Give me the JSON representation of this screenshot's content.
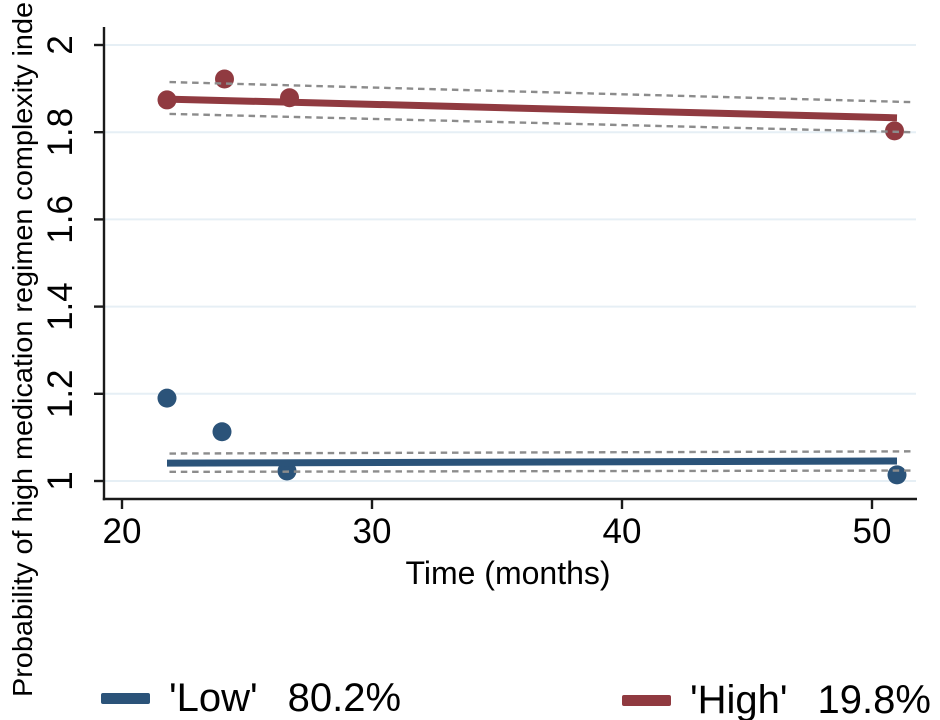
{
  "chart_data": {
    "type": "scatter",
    "title": "",
    "xlabel": "Time (months)",
    "ylabel": "Probability of high medication regimen complexity inde",
    "xlim": [
      19.3,
      51.8
    ],
    "ylim": [
      1.0,
      2.05
    ],
    "x_ticks": [
      20,
      30,
      40,
      50
    ],
    "x_tick_labels": [
      "20",
      "30",
      "40",
      "50"
    ],
    "y_ticks": [
      1,
      1.2,
      1.4,
      1.6,
      1.8,
      2
    ],
    "y_tick_labels": [
      "1",
      "1.2",
      "1.4",
      "1.6",
      "1.8",
      "2"
    ],
    "grid": "horizontal-only",
    "legend_position": "bottom",
    "colors": {
      "low": "#2b5379",
      "high": "#903a40",
      "grid": "#e6eff5",
      "ci": "#8c8c8c",
      "axis": "#1a1a1a",
      "text": "#000000"
    },
    "series": [
      {
        "id": "low",
        "name": "'Low' 80.2%",
        "color": "#2b5379",
        "points": [
          [
            21.8,
            1.19
          ],
          [
            24.0,
            1.113
          ],
          [
            26.6,
            1.023
          ],
          [
            51.0,
            1.014
          ]
        ],
        "fit": [
          [
            21.8,
            1.041
          ],
          [
            51.0,
            1.046
          ]
        ],
        "ci_upper": [
          [
            21.9,
            1.063
          ],
          [
            51.6,
            1.068
          ]
        ],
        "ci_lower": [
          [
            21.9,
            1.021
          ],
          [
            51.6,
            1.024
          ]
        ]
      },
      {
        "id": "high",
        "name": "'High' 19.8%",
        "color": "#903a40",
        "points": [
          [
            21.8,
            1.874
          ],
          [
            24.1,
            1.922
          ],
          [
            26.7,
            1.879
          ],
          [
            50.9,
            1.803
          ]
        ],
        "fit": [
          [
            21.8,
            1.876
          ],
          [
            51.0,
            1.833
          ]
        ],
        "ci_upper": [
          [
            21.9,
            1.915
          ],
          [
            51.6,
            1.869
          ]
        ],
        "ci_lower": [
          [
            21.9,
            1.842
          ],
          [
            51.6,
            1.8
          ]
        ]
      }
    ],
    "legend": [
      {
        "label": "'Low'",
        "value": "80.2%",
        "color": "#2b5379"
      },
      {
        "label": "'High'",
        "value": "19.8%",
        "color": "#903a40"
      }
    ]
  }
}
